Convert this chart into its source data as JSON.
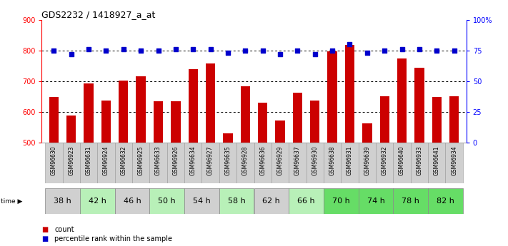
{
  "title": "GDS2232 / 1418927_a_at",
  "samples": [
    "GSM96630",
    "GSM96923",
    "GSM96631",
    "GSM96924",
    "GSM96632",
    "GSM96925",
    "GSM96633",
    "GSM96926",
    "GSM96634",
    "GSM96927",
    "GSM96635",
    "GSM96928",
    "GSM96636",
    "GSM96929",
    "GSM96637",
    "GSM96930",
    "GSM96638",
    "GSM96931",
    "GSM96639",
    "GSM96932",
    "GSM96640",
    "GSM96933",
    "GSM96641",
    "GSM96934"
  ],
  "counts": [
    648,
    588,
    693,
    637,
    703,
    715,
    635,
    635,
    738,
    757,
    530,
    683,
    630,
    572,
    662,
    638,
    797,
    817,
    562,
    652,
    775,
    743,
    648,
    652
  ],
  "percentiles": [
    75,
    72,
    76,
    75,
    76,
    75,
    75,
    76,
    76,
    76,
    73,
    75,
    75,
    72,
    75,
    72,
    75,
    80,
    73,
    75,
    76,
    76,
    75,
    75
  ],
  "time_groups": [
    {
      "label": "38 h",
      "indices": [
        0,
        1
      ],
      "color": "#d0d0d0"
    },
    {
      "label": "42 h",
      "indices": [
        2,
        3
      ],
      "color": "#b8f0b8"
    },
    {
      "label": "46 h",
      "indices": [
        4,
        5
      ],
      "color": "#d0d0d0"
    },
    {
      "label": "50 h",
      "indices": [
        6,
        7
      ],
      "color": "#b8f0b8"
    },
    {
      "label": "54 h",
      "indices": [
        8,
        9
      ],
      "color": "#d0d0d0"
    },
    {
      "label": "58 h",
      "indices": [
        10,
        11
      ],
      "color": "#b8f0b8"
    },
    {
      "label": "62 h",
      "indices": [
        12,
        13
      ],
      "color": "#d0d0d0"
    },
    {
      "label": "66 h",
      "indices": [
        14,
        15
      ],
      "color": "#b8f0b8"
    },
    {
      "label": "70 h",
      "indices": [
        16,
        17
      ],
      "color": "#66dd66"
    },
    {
      "label": "74 h",
      "indices": [
        18,
        19
      ],
      "color": "#66dd66"
    },
    {
      "label": "78 h",
      "indices": [
        20,
        21
      ],
      "color": "#66dd66"
    },
    {
      "label": "82 h",
      "indices": [
        22,
        23
      ],
      "color": "#66dd66"
    }
  ],
  "ylim_left": [
    500,
    900
  ],
  "ylim_right": [
    0,
    100
  ],
  "yticks_left": [
    500,
    600,
    700,
    800,
    900
  ],
  "yticks_right": [
    0,
    25,
    50,
    75,
    100
  ],
  "ytick_labels_right": [
    "0",
    "25",
    "50",
    "75",
    "100%"
  ],
  "bar_color": "#cc0000",
  "dot_color": "#0000cc",
  "bg_color": "#ffffff",
  "legend_count_label": "count",
  "legend_pct_label": "percentile rank within the sample"
}
